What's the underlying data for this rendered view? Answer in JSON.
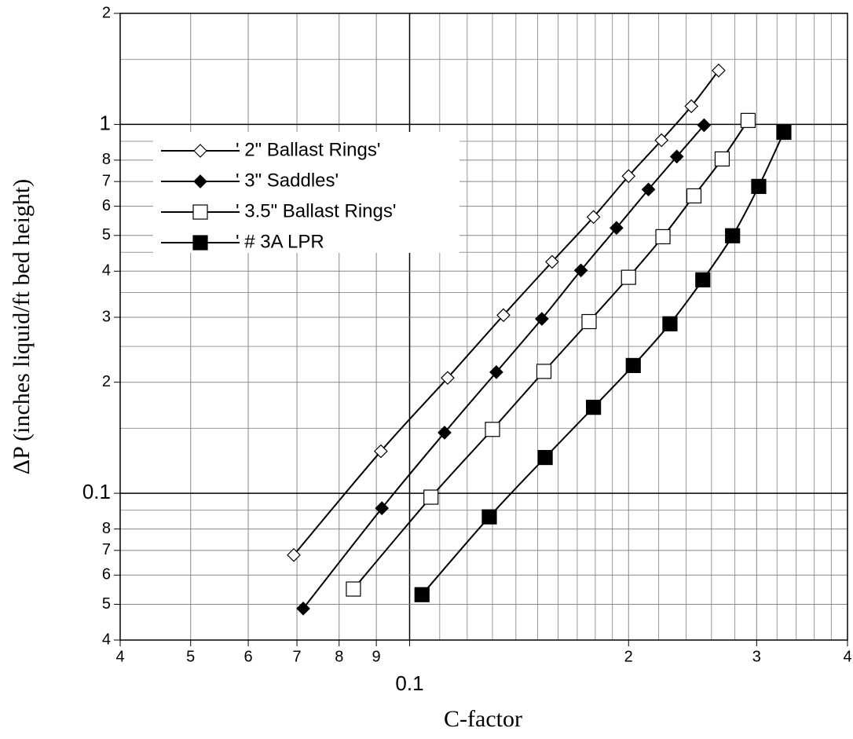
{
  "chart_data": {
    "type": "line",
    "x_label": "C-factor",
    "y_label": "ΔP (inches liquid/ft bed height)",
    "log_x": true,
    "log_y": true,
    "grid": true,
    "legend": "upper left",
    "xlim": [
      0.04,
      0.4
    ],
    "ylim": [
      0.04,
      2
    ],
    "xticks": [
      {
        "value": 0.04,
        "label": "4"
      },
      {
        "value": 0.05,
        "label": "5"
      },
      {
        "value": 0.06,
        "label": "6"
      },
      {
        "value": 0.07,
        "label": "7"
      },
      {
        "value": 0.08,
        "label": "8"
      },
      {
        "value": 0.09,
        "label": "9"
      },
      0.1,
      {
        "value": 0.2,
        "label": "2"
      },
      {
        "value": 0.3,
        "label": "3"
      },
      {
        "value": 0.4,
        "label": "4"
      }
    ],
    "yticks": [
      {
        "value": 0.04,
        "label": "4"
      },
      {
        "value": 0.05,
        "label": "5"
      },
      {
        "value": 0.06,
        "label": "6"
      },
      {
        "value": 0.07,
        "label": "7"
      },
      {
        "value": 0.08,
        "label": "8"
      },
      0.1,
      {
        "value": 0.2,
        "label": "2"
      },
      {
        "value": 0.3,
        "label": "3"
      },
      {
        "value": 0.4,
        "label": "4"
      },
      {
        "value": 0.5,
        "label": "5"
      },
      {
        "value": 0.6,
        "label": "6"
      },
      {
        "value": 0.7,
        "label": "7"
      },
      {
        "value": 0.8,
        "label": "8"
      },
      1,
      2
    ],
    "xminor": [
      0.11,
      0.12,
      0.13,
      0.14,
      0.15,
      0.16,
      0.17,
      0.18,
      0.19,
      0.22,
      0.24,
      0.26,
      0.28,
      0.32,
      0.34,
      0.36,
      0.38
    ],
    "yminor": [
      0.09,
      0.15,
      0.25,
      0.35,
      0.45,
      0.9,
      1.5
    ],
    "series": [
      {
        "name": "' 2\" Ballast Rings'",
        "color": "#000000",
        "marker": "diamond-open",
        "x": [
          0.0693,
          0.0913,
          0.1128,
          0.1346,
          0.157,
          0.179,
          0.2,
          0.222,
          0.244,
          0.266
        ],
        "values": [
          0.068,
          0.13,
          0.2055,
          0.304,
          0.424,
          0.561,
          0.724,
          0.906,
          1.12,
          1.4
        ]
      },
      {
        "name": "' 3\" Saddles'",
        "color": "#000000",
        "marker": "diamond-filled",
        "x": [
          0.0714,
          0.0916,
          0.1117,
          0.1316,
          0.152,
          0.172,
          0.1925,
          0.213,
          0.233,
          0.254
        ],
        "values": [
          0.0487,
          0.0911,
          0.146,
          0.213,
          0.297,
          0.402,
          0.524,
          0.666,
          0.818,
          0.995
        ]
      },
      {
        "name": "' 3.5\" Ballast Rings'",
        "color": "#000000",
        "marker": "square-open",
        "x": [
          0.0837,
          0.107,
          0.13,
          0.153,
          0.1765,
          0.2,
          0.223,
          0.246,
          0.269,
          0.292
        ],
        "values": [
          0.055,
          0.0976,
          0.149,
          0.214,
          0.292,
          0.385,
          0.496,
          0.64,
          0.806,
          1.025
        ]
      },
      {
        "name": "' # 3A LPR",
        "color": "#000000",
        "marker": "square-filled",
        "x": [
          0.104,
          0.1287,
          0.1536,
          0.179,
          0.203,
          0.228,
          0.253,
          0.278,
          0.302,
          0.327
        ],
        "values": [
          0.0531,
          0.0863,
          0.125,
          0.171,
          0.222,
          0.288,
          0.379,
          0.499,
          0.679,
          0.952
        ]
      }
    ]
  }
}
